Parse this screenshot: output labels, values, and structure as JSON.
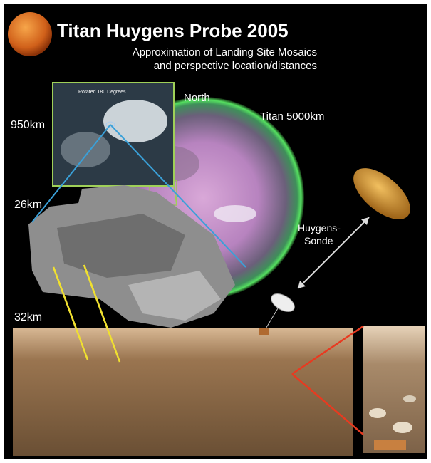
{
  "header": {
    "title": "Titan Huygens Probe 2005",
    "subtitle": [
      "Approximation of Landing Site Mosaics",
      "and perspective location/distances"
    ]
  },
  "labels": {
    "inset_note": "Rotated 180 Degrees",
    "altitude_high": "950km",
    "north": "North",
    "titan": "Titan 5000km",
    "altitude_mid": "26km",
    "probe": [
      "Huygens-",
      "Sonde"
    ],
    "altitude_low": "32km"
  }
}
